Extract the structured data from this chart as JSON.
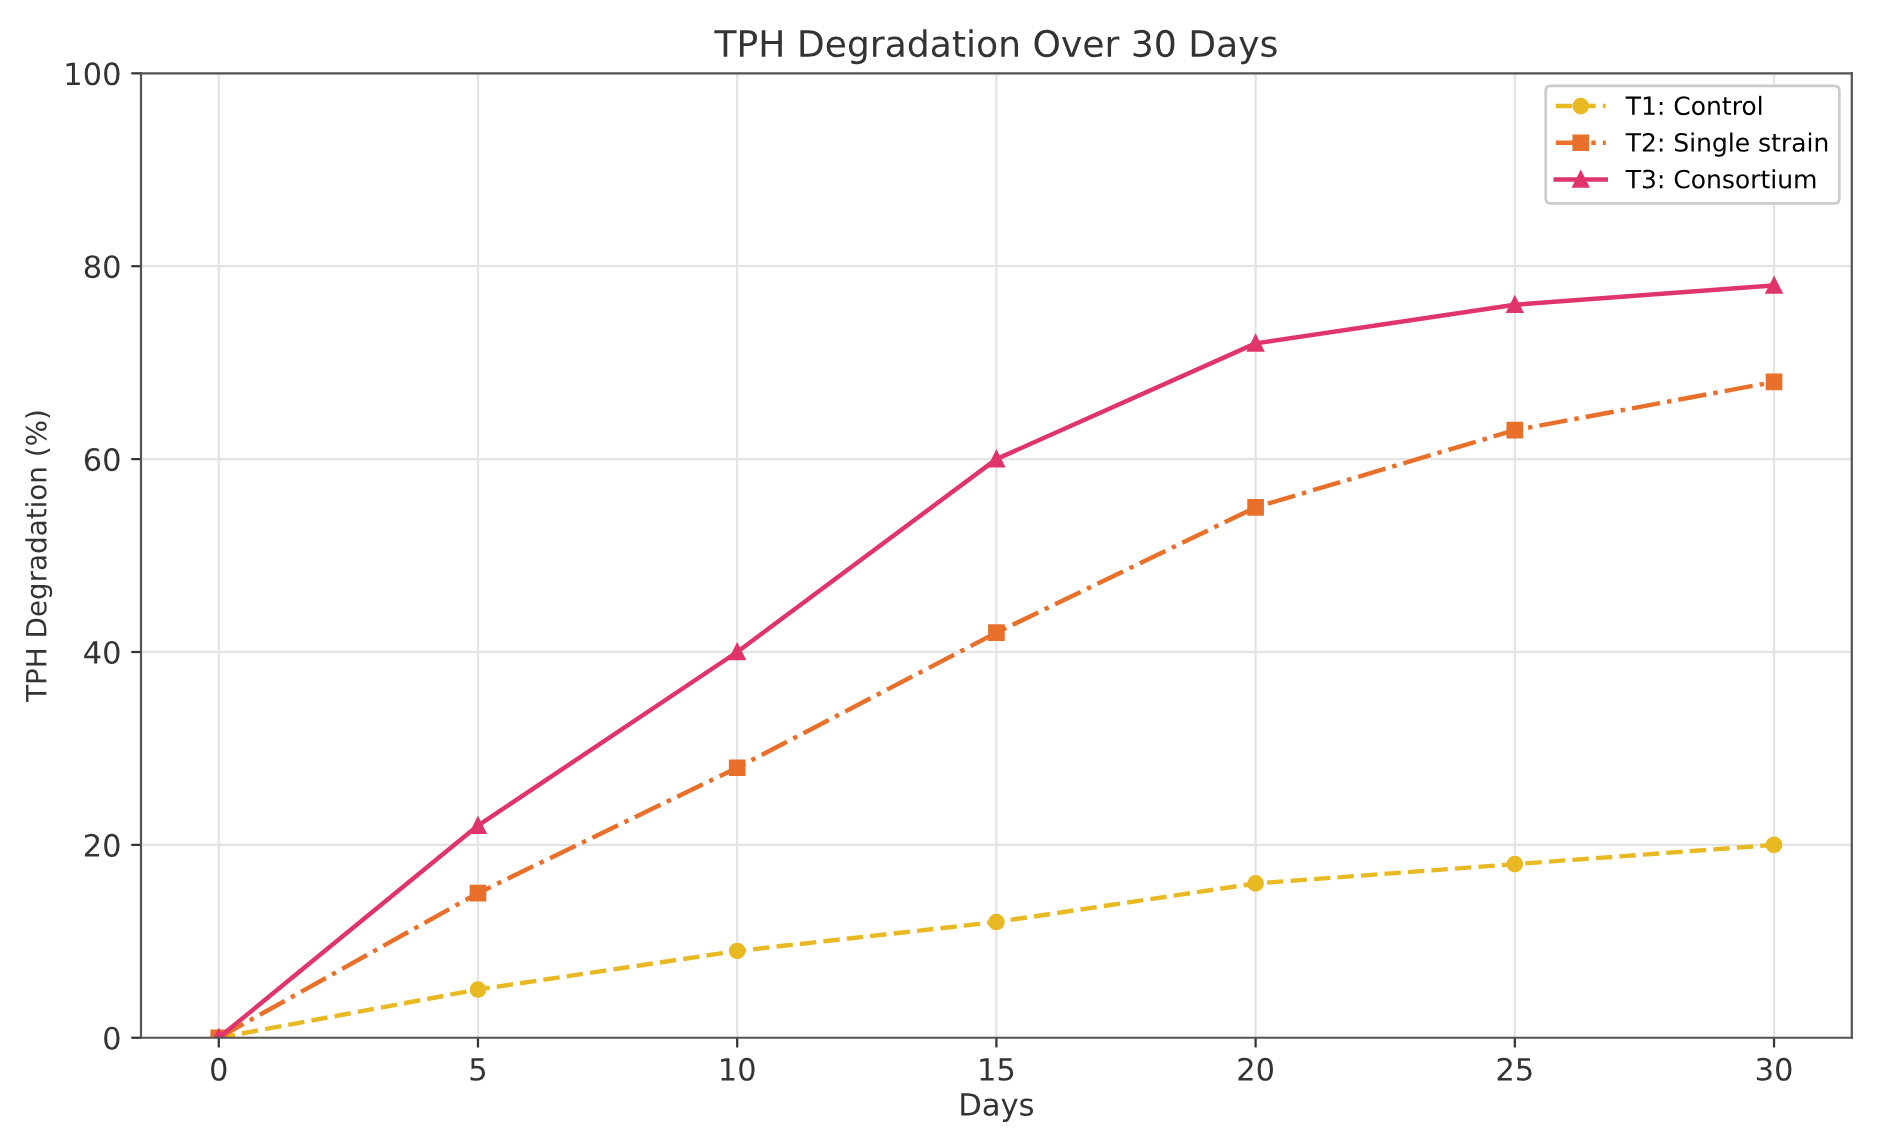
{
  "chart_data": {
    "type": "line",
    "title": "TPH Degradation Over 30 Days",
    "xlabel": "Days",
    "ylabel": "TPH Degradation (%)",
    "x": [
      0,
      5,
      10,
      15,
      20,
      25,
      30
    ],
    "series": [
      {
        "name": "T1: Control",
        "color": "#e8b923",
        "marker": "circle",
        "line_style": "dashed",
        "values": [
          0,
          5,
          9,
          12,
          16,
          18,
          20
        ]
      },
      {
        "name": "T2: Single strain",
        "color": "#e8702a",
        "marker": "square",
        "line_style": "dashdot",
        "values": [
          0,
          15,
          28,
          42,
          55,
          63,
          68
        ]
      },
      {
        "name": "T3: Consortium",
        "color": "#e0356a",
        "marker": "triangle",
        "line_style": "solid",
        "values": [
          0,
          22,
          40,
          60,
          72,
          76,
          78
        ]
      }
    ],
    "xlim": [
      -1.5,
      31.5
    ],
    "xticks": [
      0,
      5,
      10,
      15,
      20,
      25,
      30
    ],
    "ylim": [
      0,
      100
    ],
    "yticks": [
      0,
      20,
      40,
      60,
      80,
      100
    ],
    "grid": true,
    "legend": "top right"
  }
}
